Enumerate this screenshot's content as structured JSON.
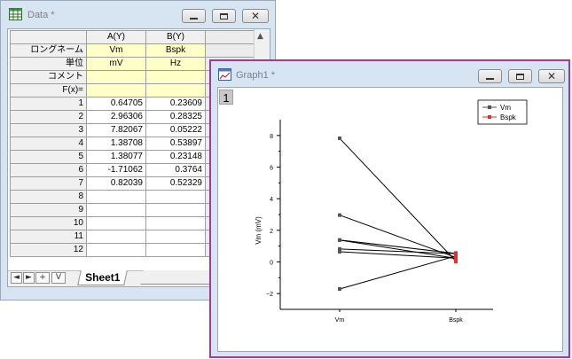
{
  "data_window": {
    "title": "Data *",
    "columns": [
      "A(Y)",
      "B(Y)"
    ],
    "meta_rows": [
      {
        "label": "ロングネーム",
        "values": [
          "Vm",
          "Bspk"
        ]
      },
      {
        "label": "単位",
        "values": [
          "mV",
          "Hz"
        ]
      },
      {
        "label": "コメント",
        "values": [
          "",
          ""
        ]
      },
      {
        "label": "F(x)=",
        "values": [
          "",
          ""
        ]
      }
    ],
    "rows": [
      {
        "index": "1",
        "a": "0.64705",
        "b": "0.23609"
      },
      {
        "index": "2",
        "a": "2.96306",
        "b": "0.28325"
      },
      {
        "index": "3",
        "a": "7.82067",
        "b": "0.05222"
      },
      {
        "index": "4",
        "a": "1.38708",
        "b": "0.53897"
      },
      {
        "index": "5",
        "a": "1.38077",
        "b": "0.23148"
      },
      {
        "index": "6",
        "a": "-1.71062",
        "b": "0.3764"
      },
      {
        "index": "7",
        "a": "0.82039",
        "b": "0.52329"
      },
      {
        "index": "8",
        "a": "",
        "b": ""
      },
      {
        "index": "9",
        "a": "",
        "b": ""
      },
      {
        "index": "10",
        "a": "",
        "b": ""
      },
      {
        "index": "11",
        "a": "",
        "b": ""
      },
      {
        "index": "12",
        "a": "",
        "b": ""
      }
    ],
    "sheet_tab": "Sheet1",
    "nav_buttons": [
      "◄",
      "►",
      "+",
      "V"
    ],
    "scroll_up_glyph": "▲",
    "icon": "worksheet-icon"
  },
  "graph_window": {
    "title": "Graph1 *",
    "layer_number": "1",
    "icon": "graph-icon",
    "accent_color": "#a23a9a"
  },
  "window_controls": {
    "minimize": "minimize-icon",
    "maximize": "maximize-icon",
    "close_glyph": "✕"
  },
  "chart_data": {
    "type": "line",
    "categories": [
      "Vm",
      "Bspk"
    ],
    "ylabel": "Vm (mV)",
    "ylim": [
      -3,
      9
    ],
    "yticks": [
      "−2",
      "0",
      "2",
      "4",
      "6",
      "8"
    ],
    "ytick_values": [
      -2,
      0,
      2,
      4,
      6,
      8
    ],
    "pairs": [
      {
        "vm": 0.64705,
        "bspk": 0.23609
      },
      {
        "vm": 2.96306,
        "bspk": 0.28325
      },
      {
        "vm": 7.82067,
        "bspk": 0.05222
      },
      {
        "vm": 1.38708,
        "bspk": 0.53897
      },
      {
        "vm": 1.38077,
        "bspk": 0.23148
      },
      {
        "vm": -1.71062,
        "bspk": 0.3764
      },
      {
        "vm": 0.82039,
        "bspk": 0.52329
      }
    ],
    "series": [
      {
        "name": "Vm",
        "color": "#555555"
      },
      {
        "name": "Bspk",
        "color": "#e03030"
      }
    ],
    "legend_position": "top-right"
  }
}
